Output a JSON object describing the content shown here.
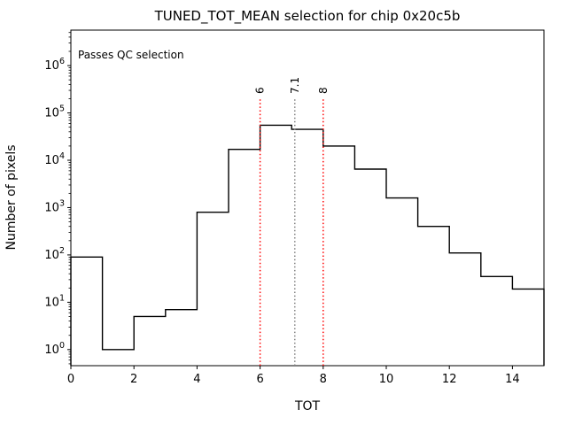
{
  "title": "TUNED_TOT_MEAN selection for chip 0x20c5b",
  "annotation": {
    "text": "Passes QC selection",
    "color": "#008000"
  },
  "chart_data": {
    "type": "bar",
    "subtype": "step-histogram",
    "title": "TUNED_TOT_MEAN selection for chip 0x20c5b",
    "xlabel": "TOT",
    "ylabel": "Number of pixels",
    "yscale": "log",
    "grid": false,
    "legend": null,
    "xlim": [
      0,
      15
    ],
    "ylim_log10": [
      -0.34,
      6.75
    ],
    "xticks": [
      0,
      2,
      4,
      6,
      8,
      10,
      12,
      14
    ],
    "ytick_exponents": [
      0,
      1,
      2,
      3,
      4,
      5,
      6
    ],
    "bin_edges": [
      0,
      1,
      2,
      3,
      4,
      5,
      6,
      7,
      8,
      9,
      10,
      11,
      12,
      13,
      14,
      15
    ],
    "counts": [
      90,
      1,
      5,
      7,
      800,
      17000,
      55000,
      45000,
      20000,
      6500,
      1600,
      400,
      110,
      35,
      19
    ],
    "line_color": "#000000",
    "vlines": [
      {
        "x": 6,
        "label": "6",
        "color": "#ff0000",
        "style": "dotted"
      },
      {
        "x": 7.1,
        "label": "7.1",
        "color": "#808080",
        "style": "dotted"
      },
      {
        "x": 8,
        "label": "8",
        "color": "#ff0000",
        "style": "dotted"
      }
    ]
  }
}
